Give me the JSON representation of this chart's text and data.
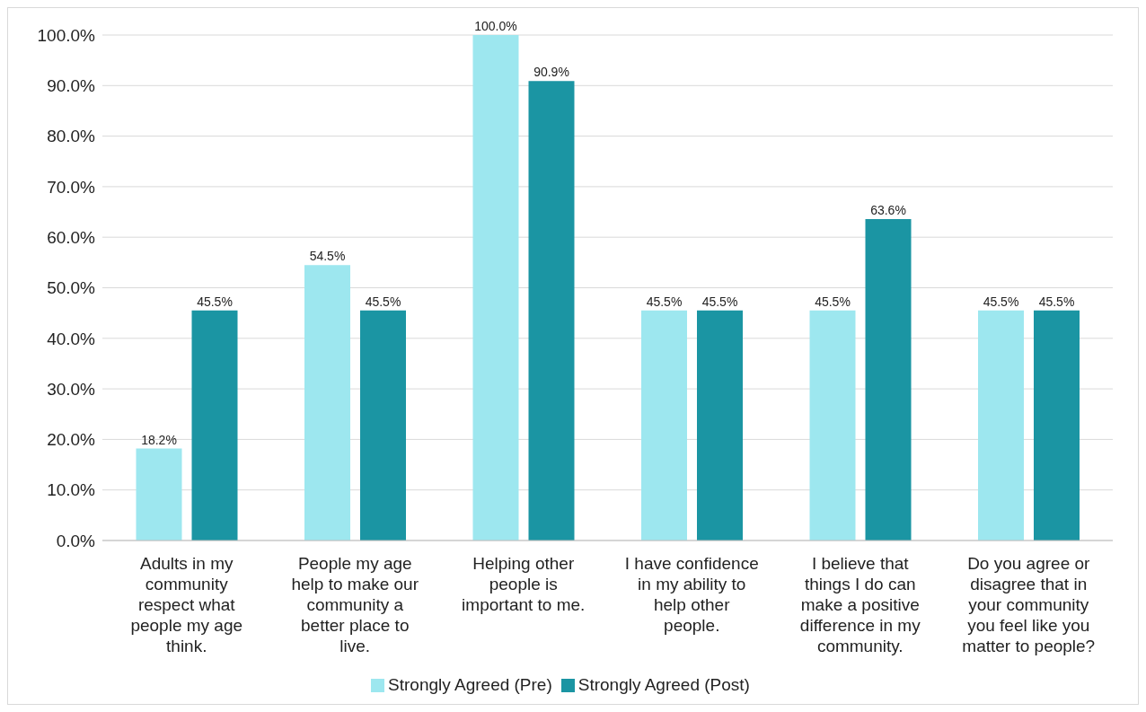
{
  "chart_data": {
    "type": "bar",
    "categories": [
      "Adults in my community respect what people my age think.",
      "People my age help to make our community a better place to live.",
      "Helping other people is important to me.",
      "I have confidence in my ability to help other people.",
      "I believe that things I do can make a positive difference in my community.",
      "Do you agree or disagree that in your community you feel like you matter to people?"
    ],
    "series": [
      {
        "name": "Strongly Agreed (Pre)",
        "color": "#9de7ef",
        "values": [
          18.2,
          54.5,
          100.0,
          45.5,
          45.5,
          45.5
        ],
        "value_labels": [
          "18.2%",
          "54.5%",
          "100.0%",
          "45.5%",
          "45.5%",
          "45.5%"
        ]
      },
      {
        "name": "Strongly Agreed (Post)",
        "color": "#1b95a3",
        "values": [
          45.5,
          45.5,
          90.9,
          45.5,
          63.6,
          45.5
        ],
        "value_labels": [
          "45.5%",
          "45.5%",
          "90.9%",
          "45.5%",
          "63.6%",
          "45.5%"
        ]
      }
    ],
    "ylim": [
      0,
      100
    ],
    "yticks": [
      {
        "value": 0,
        "label": "0.0%"
      },
      {
        "value": 10,
        "label": "10.0%"
      },
      {
        "value": 20,
        "label": "20.0%"
      },
      {
        "value": 30,
        "label": "30.0%"
      },
      {
        "value": 40,
        "label": "40.0%"
      },
      {
        "value": 50,
        "label": "50.0%"
      },
      {
        "value": 60,
        "label": "60.0%"
      },
      {
        "value": 70,
        "label": "70.0%"
      },
      {
        "value": 80,
        "label": "80.0%"
      },
      {
        "value": 90,
        "label": "90.0%"
      },
      {
        "value": 100,
        "label": "100.0%"
      }
    ],
    "grid": "y",
    "legend": "bottom"
  }
}
